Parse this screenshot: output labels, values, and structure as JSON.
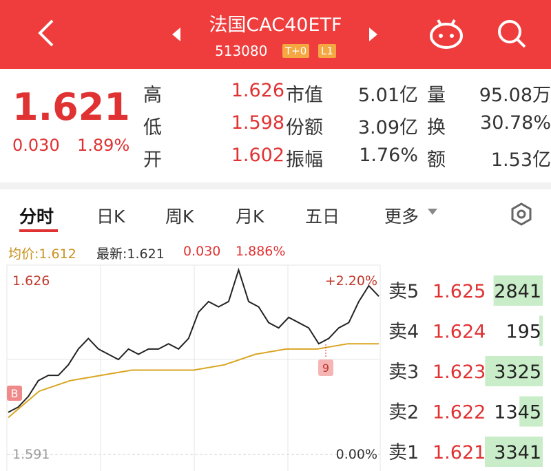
{
  "header": {
    "title": "法国CAC40ETF",
    "code": "513080",
    "tags": [
      "T+0",
      "L1"
    ]
  },
  "quote": {
    "price": "1.621",
    "change": "0.030",
    "change_pct": "1.89%",
    "stats": [
      [
        {
          "label": "高",
          "value": "1.626"
        },
        {
          "label": "市值",
          "value": "5.01亿"
        },
        {
          "label": "量",
          "value": "95.08万"
        }
      ],
      [
        {
          "label": "低",
          "value": "1.598"
        },
        {
          "label": "份额",
          "value": "3.09亿"
        },
        {
          "label": "换",
          "value": "30.78%"
        }
      ],
      [
        {
          "label": "开",
          "value": "1.602"
        },
        {
          "label": "振幅",
          "value": "1.76%"
        },
        {
          "label": "额",
          "value": "1.53亿"
        }
      ]
    ]
  },
  "tabs": [
    "分时",
    "日K",
    "周K",
    "月K",
    "五日",
    "更多"
  ],
  "info": {
    "avg": "均价:1.612",
    "latest": "最新:1.621",
    "change": "0.030",
    "change_pct": "1.886%"
  },
  "intraday": {
    "ylim": [
      1.591,
      1.626
    ],
    "top_label": "1.626",
    "bottom_label": "1.591",
    "top_pct": "+2.20%",
    "bottom_pct": "0.00%",
    "price": [
      1.599,
      1.6,
      1.602,
      1.605,
      1.606,
      1.606,
      1.608,
      1.611,
      1.613,
      1.611,
      1.61,
      1.609,
      1.611,
      1.61,
      1.611,
      1.611,
      1.612,
      1.611,
      1.613,
      1.618,
      1.62,
      1.619,
      1.62,
      1.626,
      1.62,
      1.619,
      1.616,
      1.615,
      1.617,
      1.616,
      1.615,
      1.612,
      1.613,
      1.615,
      1.616,
      1.62,
      1.623,
      1.621
    ],
    "avg": [
      1.598,
      1.603,
      1.605,
      1.606,
      1.607,
      1.607,
      1.607,
      1.608,
      1.61,
      1.611,
      1.611,
      1.612,
      1.612
    ],
    "markers": [
      "B",
      "9"
    ]
  },
  "order_book": [
    {
      "side": "卖5",
      "price": 1.625,
      "volume": 2841
    },
    {
      "side": "卖4",
      "price": 1.624,
      "volume": 195
    },
    {
      "side": "卖3",
      "price": 1.623,
      "volume": 3325
    },
    {
      "side": "卖2",
      "price": 1.622,
      "volume": 1345
    },
    {
      "side": "卖1",
      "price": 1.621,
      "volume": 3341
    }
  ]
}
